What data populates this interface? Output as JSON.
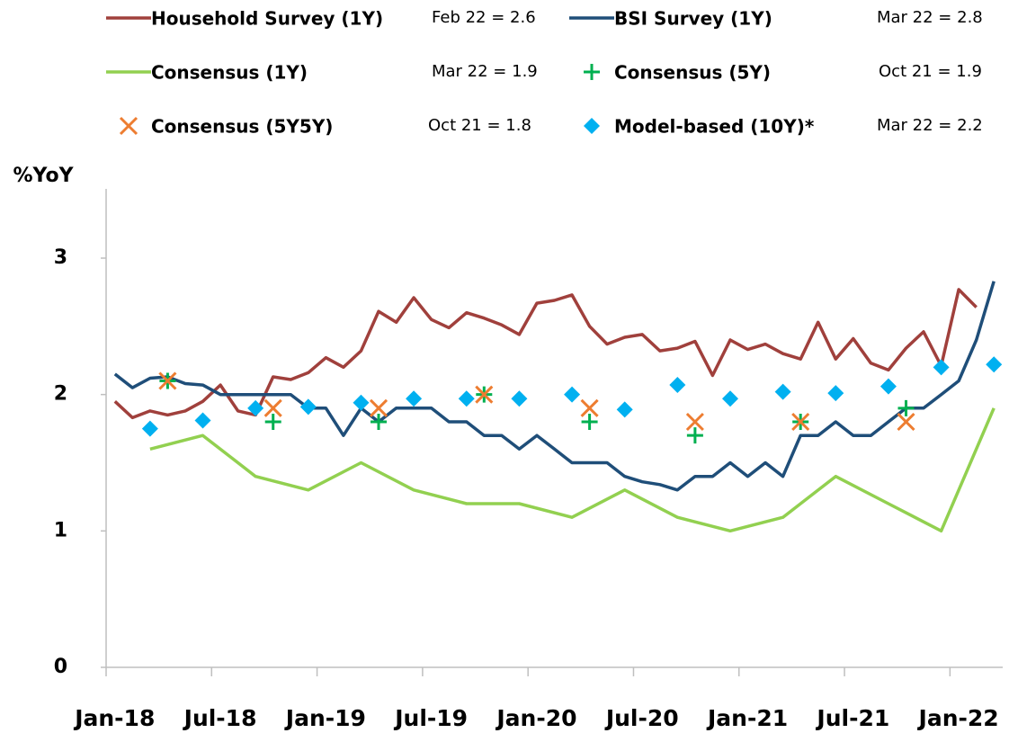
{
  "chart_data": {
    "type": "line",
    "y_label": "%YoY",
    "categories": [
      "Jan-18",
      null,
      null,
      null,
      null,
      null,
      "Jul-18",
      null,
      null,
      null,
      null,
      null,
      "Jan-19",
      null,
      null,
      null,
      null,
      null,
      "Jul-19",
      null,
      null,
      null,
      null,
      null,
      "Jan-20",
      null,
      null,
      null,
      null,
      null,
      "Jul-20",
      null,
      null,
      null,
      null,
      null,
      "Jan-21",
      null,
      null,
      null,
      null,
      null,
      "Jul-21",
      null,
      null,
      null,
      null,
      null,
      "Jan-22",
      null,
      null
    ],
    "ylim": [
      0,
      3.4
    ],
    "yticks": [
      0,
      1,
      2,
      3
    ],
    "grid": false,
    "series": [
      {
        "name": "Household Survey (1Y)",
        "note": "Feb 22 = 2.6",
        "style": "line",
        "color": "#a0403c",
        "values": [
          1.95,
          1.83,
          1.88,
          1.85,
          1.88,
          1.95,
          2.07,
          1.88,
          1.85,
          2.13,
          2.11,
          2.16,
          2.27,
          2.2,
          2.32,
          2.61,
          2.53,
          2.71,
          2.55,
          2.49,
          2.6,
          2.56,
          2.51,
          2.44,
          2.67,
          2.69,
          2.73,
          2.5,
          2.37,
          2.42,
          2.44,
          2.32,
          2.34,
          2.39,
          2.14,
          2.4,
          2.33,
          2.37,
          2.3,
          2.26,
          2.53,
          2.26,
          2.41,
          2.23,
          2.18,
          2.34,
          2.46,
          2.21,
          2.77,
          2.64,
          null
        ]
      },
      {
        "name": "BSI Survey (1Y)",
        "note": "Mar 22 = 2.8",
        "style": "line",
        "color": "#1f4e79",
        "values": [
          2.15,
          2.05,
          2.12,
          2.13,
          2.08,
          2.07,
          2.0,
          2.0,
          2.0,
          2.0,
          2.0,
          1.9,
          1.9,
          1.7,
          1.9,
          1.8,
          1.9,
          1.9,
          1.9,
          1.8,
          1.8,
          1.7,
          1.7,
          1.6,
          1.7,
          1.6,
          1.5,
          1.5,
          1.5,
          1.4,
          1.36,
          1.34,
          1.3,
          1.4,
          1.4,
          1.5,
          1.4,
          1.5,
          1.4,
          1.7,
          1.7,
          1.8,
          1.7,
          1.7,
          1.8,
          1.9,
          1.9,
          2.0,
          2.1,
          2.4,
          2.83
        ]
      },
      {
        "name": "Consensus (1Y)",
        "note": "Mar 22 = 1.9",
        "style": "line",
        "connect_gaps": true,
        "color": "#92d050",
        "values": [
          null,
          null,
          1.6,
          null,
          null,
          1.7,
          null,
          null,
          1.4,
          null,
          null,
          1.3,
          null,
          null,
          1.5,
          null,
          null,
          1.3,
          null,
          null,
          1.2,
          null,
          null,
          1.2,
          null,
          null,
          1.1,
          null,
          null,
          1.3,
          null,
          null,
          1.1,
          null,
          null,
          1.0,
          null,
          null,
          1.1,
          null,
          null,
          1.4,
          null,
          null,
          1.2,
          null,
          null,
          1.0,
          null,
          null,
          1.9
        ]
      },
      {
        "name": "Consensus (5Y)",
        "note": "Oct 21 = 1.9",
        "style": "plus",
        "color": "#00b050",
        "values": [
          null,
          null,
          null,
          2.1,
          null,
          null,
          null,
          null,
          null,
          1.8,
          null,
          null,
          null,
          null,
          null,
          1.8,
          null,
          null,
          null,
          null,
          null,
          2.0,
          null,
          null,
          null,
          null,
          null,
          1.8,
          null,
          null,
          null,
          null,
          null,
          1.7,
          null,
          null,
          null,
          null,
          null,
          1.8,
          null,
          null,
          null,
          null,
          null,
          1.9,
          null,
          null,
          null,
          null,
          null
        ]
      },
      {
        "name": "Consensus (5Y5Y)",
        "note": "Oct 21 = 1.8",
        "style": "cross",
        "color": "#ed7d31",
        "values": [
          null,
          null,
          null,
          2.1,
          null,
          null,
          null,
          null,
          null,
          1.9,
          null,
          null,
          null,
          null,
          null,
          1.9,
          null,
          null,
          null,
          null,
          null,
          2.0,
          null,
          null,
          null,
          null,
          null,
          1.9,
          null,
          null,
          null,
          null,
          null,
          1.8,
          null,
          null,
          null,
          null,
          null,
          1.8,
          null,
          null,
          null,
          null,
          null,
          1.8,
          null,
          null,
          null,
          null,
          null
        ]
      },
      {
        "name": "Model-based (10Y)*",
        "note": "Mar 22 = 2.2",
        "style": "diamond",
        "color": "#00b0f0",
        "values": [
          null,
          null,
          1.75,
          null,
          null,
          1.81,
          null,
          null,
          1.9,
          null,
          null,
          1.91,
          null,
          null,
          1.94,
          null,
          null,
          1.97,
          null,
          null,
          1.97,
          null,
          null,
          1.97,
          null,
          null,
          2.0,
          null,
          null,
          1.89,
          null,
          null,
          2.07,
          null,
          null,
          1.97,
          null,
          null,
          2.02,
          null,
          null,
          2.01,
          null,
          null,
          2.06,
          null,
          null,
          2.2,
          null,
          null,
          2.22
        ]
      }
    ]
  }
}
